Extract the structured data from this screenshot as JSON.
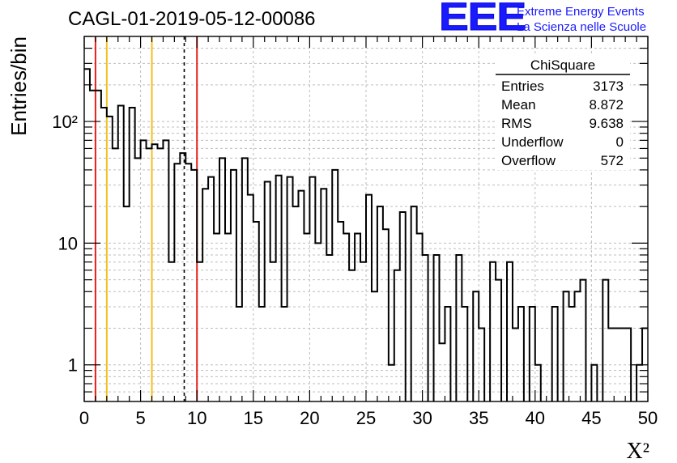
{
  "header": {
    "run_title": "CAGL-01-2019-05-12-00086",
    "logo_mark": "EEE",
    "logo_line1": "Extreme Energy Events",
    "logo_line2": "La Scienza nelle Scuole"
  },
  "colors": {
    "histogram": "#000000",
    "red_lines": "#e8201b",
    "yellow_lines": "#f2c01f",
    "dashed_line": "#000000",
    "brand_blue": "#1a1aff",
    "grid": "#bdbdbd"
  },
  "stats_box": {
    "title": "ChiSquare",
    "rows": [
      {
        "label": "Entries",
        "value": "3173"
      },
      {
        "label": "Mean",
        "value": "8.872"
      },
      {
        "label": "RMS",
        "value": "9.638"
      },
      {
        "label": "Underflow",
        "value": "0"
      },
      {
        "label": "Overflow",
        "value": "572"
      }
    ]
  },
  "chart_data": {
    "type": "histogram",
    "xlabel": "X²",
    "ylabel": "Entries/bin",
    "xlim": [
      0,
      50
    ],
    "ylim": [
      0.5,
      500
    ],
    "yscale": "log",
    "grid": true,
    "x_ticks": [
      0,
      5,
      10,
      15,
      20,
      25,
      30,
      35,
      40,
      45,
      50
    ],
    "y_ticks": [
      1,
      10,
      100
    ],
    "y_tick_labels": [
      "1",
      "10",
      "10²"
    ],
    "bin_width": 0.5,
    "bin_start": 0,
    "bin_values": [
      270,
      180,
      180,
      130,
      110,
      60,
      135,
      20,
      130,
      50,
      70,
      60,
      65,
      60,
      70,
      7,
      45,
      55,
      45,
      40,
      7,
      28,
      35,
      12,
      50,
      12,
      40,
      3,
      50,
      25,
      15,
      3,
      32,
      7,
      36,
      3,
      35,
      20,
      27,
      12,
      35,
      10,
      28,
      8,
      40,
      15,
      12,
      6,
      12,
      7,
      25,
      4,
      20,
      13,
      1,
      6,
      18,
      0.3,
      20,
      12,
      8,
      0.3,
      8,
      1.5,
      3,
      0.3,
      8,
      3,
      0.3,
      4,
      2,
      0.3,
      7,
      5,
      0.3,
      7,
      2,
      3,
      0.3,
      3,
      1,
      0.3,
      0.3,
      3,
      0.3,
      4,
      3,
      4,
      5,
      0.3,
      1,
      0.3,
      5,
      2,
      2,
      2,
      2,
      0.3,
      1,
      2
    ],
    "vertical_lines": [
      {
        "x": 1,
        "style": "red"
      },
      {
        "x": 2,
        "style": "yellow"
      },
      {
        "x": 6,
        "style": "yellow"
      },
      {
        "x": 8.872,
        "style": "dashed"
      },
      {
        "x": 10,
        "style": "red"
      }
    ]
  }
}
